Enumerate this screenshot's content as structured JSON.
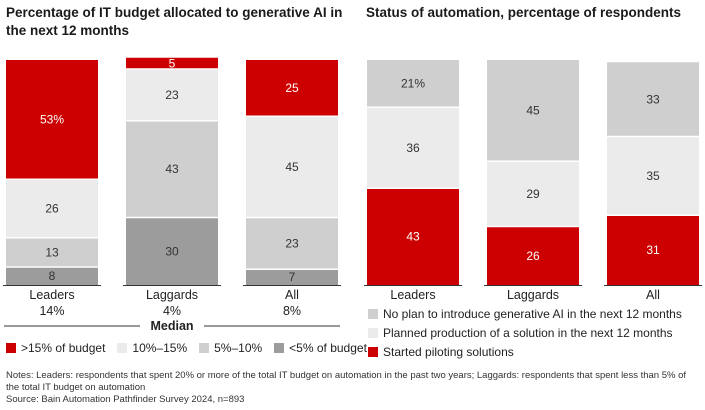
{
  "colors": {
    "red": "#cc0000",
    "light": "#ebebeb",
    "mid": "#cfcfcf",
    "dark": "#9c9c9c",
    "separator": "#ffffff",
    "label_on_dark": "#ffffff",
    "label_on_light": "#333333"
  },
  "chart_data": [
    {
      "type": "bar",
      "stacked": true,
      "title": "Percentage of IT budget allocated to generative AI in the next 12 months",
      "categories": [
        "Leaders",
        "Laggards",
        "All"
      ],
      "category_sublabels": [
        "14%",
        "4%",
        "8%"
      ],
      "category_sublabel_title": "Median",
      "ylim": [
        0,
        100
      ],
      "series": [
        {
          "name": "<5% of budget",
          "color_key": "dark",
          "values": [
            8,
            30,
            7
          ],
          "labels": [
            "8",
            "30",
            "7"
          ]
        },
        {
          "name": "5%–10%",
          "color_key": "mid",
          "values": [
            13,
            43,
            23
          ],
          "labels": [
            "13",
            "43",
            "23"
          ]
        },
        {
          "name": "10%–15%",
          "color_key": "light",
          "values": [
            26,
            23,
            45
          ],
          "labels": [
            "26",
            "23",
            "45"
          ]
        },
        {
          "name": ">15% of budget",
          "color_key": "red",
          "values": [
            53,
            5,
            25
          ],
          "labels": [
            "53%",
            "5",
            "25"
          ]
        }
      ],
      "legend": [
        {
          "name": ">15% of budget",
          "color_key": "red"
        },
        {
          "name": "10%–15%",
          "color_key": "light"
        },
        {
          "name": "5%–10%",
          "color_key": "mid"
        },
        {
          "name": "<5% of budget",
          "color_key": "dark"
        }
      ]
    },
    {
      "type": "bar",
      "stacked": true,
      "title": "Status of automation, percentage of respondents",
      "categories": [
        "Leaders",
        "Laggards",
        "All"
      ],
      "ylim": [
        0,
        100
      ],
      "series": [
        {
          "name": "Started piloting solutions",
          "color_key": "red",
          "values": [
            43,
            26,
            31
          ],
          "labels": [
            "43",
            "26",
            "31"
          ]
        },
        {
          "name": "Planned production of a solution in the next 12 months",
          "color_key": "light",
          "values": [
            36,
            29,
            35
          ],
          "labels": [
            "36",
            "29",
            "35"
          ]
        },
        {
          "name": "No plan to introduce generative AI in the next 12 months",
          "color_key": "mid",
          "values": [
            21,
            45,
            33
          ],
          "labels": [
            "21%",
            "45",
            "33"
          ]
        }
      ],
      "legend": [
        {
          "name": "No plan to introduce generative AI in the next 12 months",
          "color_key": "mid"
        },
        {
          "name": "Planned production of a solution in the next 12 months",
          "color_key": "light"
        },
        {
          "name": "Started piloting solutions",
          "color_key": "red"
        }
      ]
    }
  ],
  "notes": {
    "line1": "Notes: Leaders: respondents that spent 20% or more of the total IT budget on automation in the past two years; Laggards: respondents that spent less than 5% of the total IT budget on automation",
    "source": "Source: Bain Automation Pathfinder Survey 2024, n=893"
  }
}
